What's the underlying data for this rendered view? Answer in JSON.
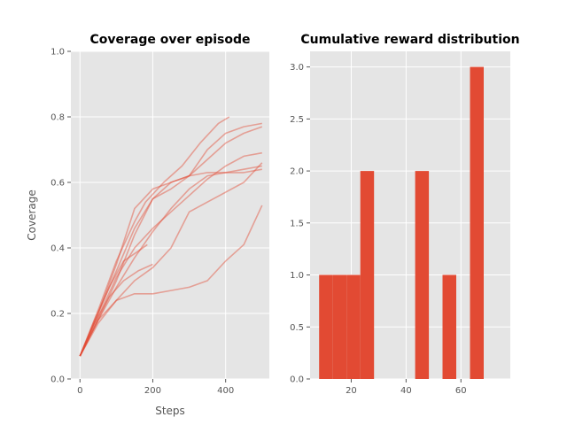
{
  "chart_data": [
    {
      "type": "line",
      "title": "Coverage over episode",
      "xlabel": "Steps",
      "ylabel": "Coverage",
      "xlim": [
        -25,
        520
      ],
      "ylim": [
        0,
        1.0
      ],
      "xticks": [
        0,
        200,
        400
      ],
      "xtick_labels": [
        "0",
        "200",
        "400"
      ],
      "yticks": [
        0.0,
        0.2,
        0.4,
        0.6,
        0.8,
        1.0
      ],
      "ytick_labels": [
        "0.0",
        "0.2",
        "0.4",
        "0.6",
        "0.8",
        "1.0"
      ],
      "grid": true,
      "line_color": "#E24A33",
      "series": [
        {
          "x": [
            0,
            50,
            100,
            150,
            200,
            250,
            300,
            350,
            400,
            450,
            500
          ],
          "y": [
            0.07,
            0.2,
            0.33,
            0.46,
            0.55,
            0.58,
            0.62,
            0.7,
            0.75,
            0.77,
            0.78
          ]
        },
        {
          "x": [
            0,
            50,
            100,
            150,
            200,
            250,
            300,
            350,
            400,
            450,
            500
          ],
          "y": [
            0.07,
            0.18,
            0.3,
            0.44,
            0.55,
            0.6,
            0.62,
            0.67,
            0.72,
            0.75,
            0.77
          ]
        },
        {
          "x": [
            0,
            50,
            100,
            150,
            200,
            250,
            300,
            350,
            400,
            450,
            500
          ],
          "y": [
            0.07,
            0.2,
            0.35,
            0.52,
            0.58,
            0.6,
            0.62,
            0.63,
            0.63,
            0.63,
            0.64
          ]
        },
        {
          "x": [
            0,
            50,
            100,
            150,
            200,
            250,
            300,
            350,
            400,
            450,
            500
          ],
          "y": [
            0.07,
            0.19,
            0.31,
            0.4,
            0.46,
            0.51,
            0.56,
            0.61,
            0.65,
            0.68,
            0.69
          ]
        },
        {
          "x": [
            0,
            50,
            100,
            150,
            200,
            250,
            300,
            350,
            400,
            450,
            500
          ],
          "y": [
            0.07,
            0.18,
            0.28,
            0.37,
            0.45,
            0.52,
            0.58,
            0.62,
            0.63,
            0.64,
            0.65
          ]
        },
        {
          "x": [
            0,
            50,
            100,
            150,
            200,
            250,
            300,
            350,
            400,
            450,
            500
          ],
          "y": [
            0.07,
            0.17,
            0.24,
            0.3,
            0.34,
            0.4,
            0.51,
            0.54,
            0.57,
            0.6,
            0.66
          ]
        },
        {
          "x": [
            0,
            50,
            100,
            150,
            200,
            250,
            300,
            350,
            400,
            450,
            500
          ],
          "y": [
            0.07,
            0.18,
            0.24,
            0.26,
            0.26,
            0.27,
            0.28,
            0.3,
            0.36,
            0.41,
            0.53
          ]
        },
        {
          "x": [
            0,
            50,
            100,
            150,
            180,
            230,
            280,
            330,
            380,
            410
          ],
          "y": [
            0.07,
            0.21,
            0.36,
            0.48,
            0.54,
            0.6,
            0.65,
            0.72,
            0.78,
            0.8
          ]
        },
        {
          "x": [
            0,
            40,
            80,
            120,
            160,
            200
          ],
          "y": [
            0.07,
            0.17,
            0.25,
            0.3,
            0.33,
            0.35
          ]
        },
        {
          "x": [
            0,
            40,
            80,
            120,
            160,
            185
          ],
          "y": [
            0.07,
            0.18,
            0.28,
            0.36,
            0.39,
            0.41
          ]
        }
      ]
    },
    {
      "type": "bar",
      "title": "Cumulative reward distribution",
      "xlim": [
        5,
        78
      ],
      "ylim": [
        0,
        3.15
      ],
      "xticks": [
        20,
        40,
        60
      ],
      "xtick_labels": [
        "20",
        "40",
        "60"
      ],
      "yticks": [
        0.0,
        0.5,
        1.0,
        1.5,
        2.0,
        2.5,
        3.0
      ],
      "ytick_labels": [
        "0.0",
        "0.5",
        "1.0",
        "1.5",
        "2.0",
        "2.5",
        "3.0"
      ],
      "grid": true,
      "bar_color": "#E24A33",
      "bins": [
        {
          "start": 8.3,
          "end": 13.3,
          "value": 1
        },
        {
          "start": 13.3,
          "end": 18.3,
          "value": 1
        },
        {
          "start": 18.3,
          "end": 23.3,
          "value": 1
        },
        {
          "start": 23.3,
          "end": 28.3,
          "value": 2
        },
        {
          "start": 28.3,
          "end": 33.3,
          "value": 0
        },
        {
          "start": 33.3,
          "end": 38.3,
          "value": 0
        },
        {
          "start": 38.3,
          "end": 43.3,
          "value": 0
        },
        {
          "start": 43.3,
          "end": 48.3,
          "value": 2
        },
        {
          "start": 48.3,
          "end": 53.3,
          "value": 0
        },
        {
          "start": 53.3,
          "end": 58.3,
          "value": 1
        },
        {
          "start": 58.3,
          "end": 63.3,
          "value": 0
        },
        {
          "start": 63.3,
          "end": 68.3,
          "value": 3
        }
      ]
    }
  ]
}
